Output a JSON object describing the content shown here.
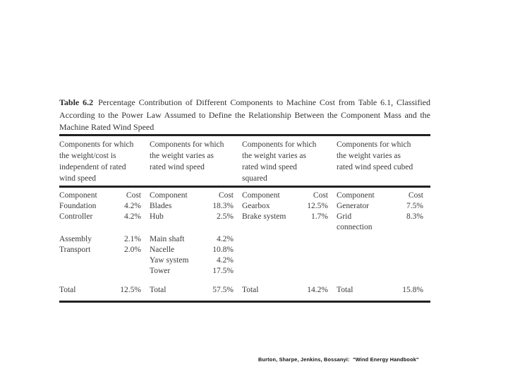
{
  "table": {
    "label": "Table 6.2",
    "title": "Percentage Contribution of Different Components to Machine Cost from Table 6.1, Classified According to the Power Law Assumed to Define the Relationship Between the Component Mass and the Machine Rated Wind Speed",
    "col_headers": {
      "component": "Component",
      "cost": "Cost"
    },
    "groups": [
      {
        "header": "Components for which\nthe weight/cost is\nindependent of rated\nwind speed",
        "rows": [
          {
            "component": "Foundation",
            "cost": "4.2%"
          },
          {
            "component": "Controller",
            "cost": "4.2%"
          },
          {
            "component": "Assembly",
            "cost": "2.1%"
          },
          {
            "component": "Transport",
            "cost": "2.0%"
          }
        ],
        "total_label": "Total",
        "total": "12.5%"
      },
      {
        "header": "Components for which\nthe weight varies as\nrated wind speed",
        "rows": [
          {
            "component": "Blades",
            "cost": "18.3%"
          },
          {
            "component": "Hub",
            "cost": "2.5%"
          },
          {
            "component": "Main shaft",
            "cost": "4.2%"
          },
          {
            "component": "Nacelle",
            "cost": "10.8%"
          },
          {
            "component": "Yaw system",
            "cost": "4.2%"
          },
          {
            "component": "Tower",
            "cost": "17.5%"
          }
        ],
        "total_label": "Total",
        "total": "57.5%"
      },
      {
        "header": "Components for which\nthe weight varies as\nrated wind speed\nsquared",
        "rows": [
          {
            "component": "Gearbox",
            "cost": "12.5%"
          },
          {
            "component": "Brake system",
            "cost": "1.7%"
          }
        ],
        "total_label": "Total",
        "total": "14.2%"
      },
      {
        "header": "Components for which\nthe weight varies as\nrated wind speed cubed",
        "rows": [
          {
            "component": "Generator",
            "cost": "7.5%"
          },
          {
            "component": "Grid\nconnection",
            "cost": "8.3%"
          }
        ],
        "total_label": "Total",
        "total": "15.8%"
      }
    ]
  },
  "footer": {
    "citation": "Burton, Sharpe, Jenkins, Bossanyi:  \"Wind Energy Handbook\""
  }
}
